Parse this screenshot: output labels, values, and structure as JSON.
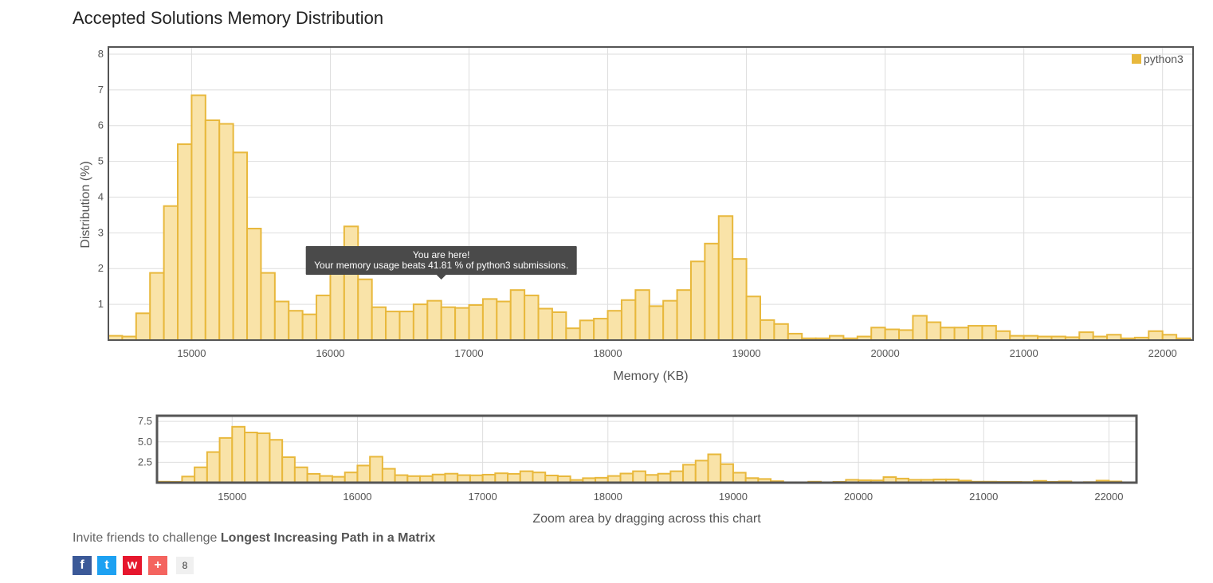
{
  "page": {
    "title": "Accepted Solutions Memory Distribution",
    "invite_prefix": "Invite friends to challenge ",
    "problem_name": "Longest Increasing Path in a Matrix",
    "share_count": "8",
    "share_buttons": [
      {
        "name": "facebook-share-button",
        "glyph": "f",
        "color": "#3b5998"
      },
      {
        "name": "twitter-share-button",
        "glyph": "t",
        "color": "#1da1f2"
      },
      {
        "name": "weibo-share-button",
        "glyph": "w",
        "color": "#e6162d"
      },
      {
        "name": "more-share-button",
        "glyph": "+",
        "color": "#f4645f"
      }
    ]
  },
  "chart_data": {
    "type": "bar",
    "title": "",
    "xlabel": "Memory (KB)",
    "ylabel": "Distribution (%)",
    "xlim": [
      14400,
      22220
    ],
    "ylim": [
      0,
      8.2
    ],
    "x_ticks": [
      15000,
      16000,
      17000,
      18000,
      19000,
      20000,
      21000,
      22000
    ],
    "y_ticks": [
      1,
      2,
      3,
      4,
      5,
      6,
      7,
      8
    ],
    "bin_width": 100,
    "grid": true,
    "legend_position": "top-right",
    "series": [
      {
        "name": "python3",
        "color": "#e8b83c",
        "x": [
          14400,
          14500,
          14600,
          14700,
          14800,
          14900,
          15000,
          15100,
          15200,
          15300,
          15400,
          15500,
          15600,
          15700,
          15800,
          15900,
          16000,
          16100,
          16200,
          16300,
          16400,
          16500,
          16600,
          16700,
          16800,
          16900,
          17000,
          17100,
          17200,
          17300,
          17400,
          17500,
          17600,
          17700,
          17800,
          17900,
          18000,
          18100,
          18200,
          18300,
          18400,
          18500,
          18600,
          18700,
          18800,
          18900,
          19000,
          19100,
          19200,
          19300,
          19400,
          19500,
          19600,
          19700,
          19800,
          19900,
          20000,
          20100,
          20200,
          20300,
          20400,
          20500,
          20600,
          20700,
          20800,
          20900,
          21000,
          21100,
          21200,
          21300,
          21400,
          21500,
          21600,
          21700,
          21800,
          21900,
          22000,
          22100
        ],
        "values": [
          0.12,
          0.1,
          0.75,
          1.88,
          3.75,
          5.48,
          6.85,
          6.15,
          6.05,
          5.25,
          3.12,
          1.88,
          1.08,
          0.82,
          0.72,
          1.25,
          2.1,
          3.18,
          1.7,
          0.92,
          0.8,
          0.8,
          1.0,
          1.1,
          0.92,
          0.9,
          0.98,
          1.15,
          1.08,
          1.4,
          1.25,
          0.88,
          0.78,
          0.33,
          0.55,
          0.6,
          0.82,
          1.12,
          1.4,
          0.95,
          1.1,
          1.4,
          2.2,
          2.7,
          3.47,
          2.27,
          1.22,
          0.56,
          0.45,
          0.18,
          0.05,
          0.05,
          0.12,
          0.05,
          0.1,
          0.35,
          0.3,
          0.28,
          0.68,
          0.5,
          0.35,
          0.35,
          0.4,
          0.4,
          0.25,
          0.12,
          0.12,
          0.1,
          0.1,
          0.08,
          0.22,
          0.1,
          0.15,
          0.05,
          0.07,
          0.25,
          0.15,
          0.05
        ]
      }
    ],
    "tooltip": {
      "line1": "You are here!",
      "line2": "Your memory usage beats 41.81 % of python3 submissions.",
      "x": 16800
    },
    "navigator": {
      "y_ticks": [
        2.5,
        5.0,
        7.5
      ],
      "y_tick_labels": [
        "2.5",
        "5.0",
        "7.5"
      ],
      "ylim": [
        0,
        8.2
      ],
      "caption": "Zoom area by dragging across this chart"
    }
  }
}
